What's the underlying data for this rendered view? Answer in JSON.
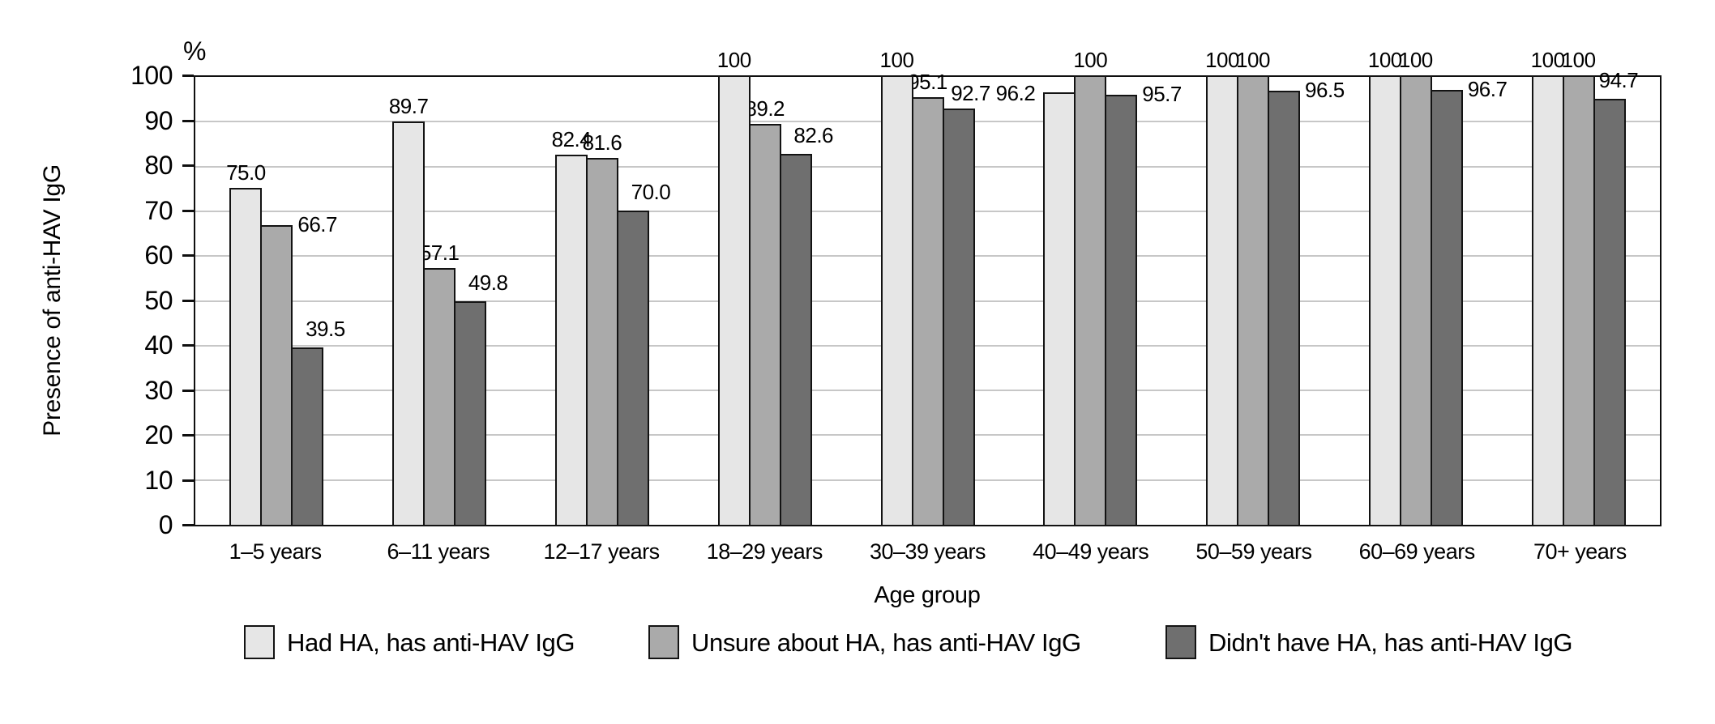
{
  "chart_data": {
    "type": "bar",
    "title": "",
    "unit_label": "%",
    "ylabel": "Presence of anti-HAV IgG",
    "xlabel": "Age group",
    "ylim": [
      0,
      100
    ],
    "ytick_step": 10,
    "yticks": [
      0,
      10,
      20,
      30,
      40,
      50,
      60,
      70,
      80,
      90,
      100
    ],
    "grid": "horizontal",
    "legend_position": "bottom",
    "value_labels": true,
    "categories": [
      "1–5 years",
      "6–11 years",
      "12–17 years",
      "18–29 years",
      "30–39 years",
      "40–49 years",
      "50–59 years",
      "60–69 years",
      "70+ years"
    ],
    "series": [
      {
        "name": "Had HA, has anti-HAV IgG",
        "color": "#e6e6e6",
        "values": [
          75.0,
          89.7,
          82.4,
          100,
          100,
          96.2,
          100,
          100,
          100
        ]
      },
      {
        "name": "Unsure about HA, has anti-HAV IgG",
        "color": "#aaaaaa",
        "values": [
          66.7,
          57.1,
          81.6,
          89.2,
          95.1,
          100,
          100,
          100,
          100
        ]
      },
      {
        "name": "Didn't have HA, has anti-HAV IgG",
        "color": "#6f6f6f",
        "values": [
          39.5,
          49.8,
          70.0,
          82.6,
          92.7,
          95.7,
          96.5,
          96.7,
          94.7
        ]
      }
    ]
  }
}
